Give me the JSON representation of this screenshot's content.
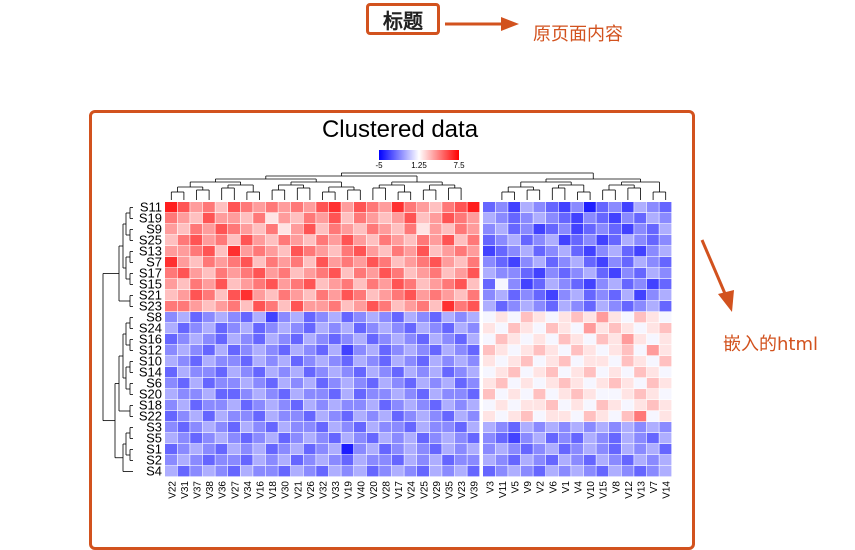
{
  "annotations": {
    "title_tag": "标题",
    "title_note": "原页面内容",
    "embed_note": "嵌入的html"
  },
  "colors": {
    "accent": "#d2521e",
    "low": "#0000ff",
    "mid": "#ffffff",
    "high": "#ff0000"
  },
  "chart_data": {
    "type": "heatmap",
    "title": "Clustered data",
    "legend": {
      "min": -5,
      "mid": 1.25,
      "max": 7.5,
      "labels": [
        "-5",
        "1.25",
        "7.5"
      ]
    },
    "rows": [
      "S11",
      "S19",
      "S9",
      "S25",
      "S13",
      "S7",
      "S17",
      "S15",
      "S21",
      "S23",
      "S8",
      "S24",
      "S16",
      "S12",
      "S10",
      "S14",
      "S6",
      "S20",
      "S18",
      "S22",
      "S3",
      "S5",
      "S1",
      "S2",
      "S4"
    ],
    "columns": [
      "V22",
      "V31",
      "V37",
      "V38",
      "V36",
      "V27",
      "V34",
      "V16",
      "V18",
      "V30",
      "V21",
      "V26",
      "V32",
      "V33",
      "V19",
      "V40",
      "V20",
      "V28",
      "V17",
      "V24",
      "V25",
      "V29",
      "V35",
      "V23",
      "V39",
      "V3",
      "V11",
      "V5",
      "V9",
      "V2",
      "V6",
      "V1",
      "V4",
      "V10",
      "V15",
      "V8",
      "V12",
      "V13",
      "V7",
      "V14"
    ],
    "values": [
      [
        8,
        6,
        4,
        5,
        3,
        6,
        5,
        4,
        5,
        4,
        5,
        4,
        6,
        7,
        4,
        6,
        5,
        4,
        7,
        5,
        4,
        3,
        5,
        6,
        8,
        -3,
        -2,
        -4,
        -1,
        -2,
        -3,
        -4,
        -2,
        -6,
        -3,
        -2,
        -4,
        -1,
        -2,
        -3
      ],
      [
        5,
        4,
        3,
        6,
        4,
        4,
        3,
        5,
        2,
        4,
        3,
        5,
        4,
        6,
        3,
        5,
        4,
        3,
        4,
        6,
        3,
        4,
        6,
        5,
        4,
        -1,
        -2,
        -3,
        -2,
        -1,
        -2,
        -3,
        -4,
        -2,
        -3,
        -4,
        -2,
        -3,
        -1,
        -2
      ],
      [
        4,
        3,
        5,
        4,
        6,
        5,
        4,
        3,
        5,
        2,
        4,
        6,
        3,
        5,
        4,
        3,
        5,
        4,
        3,
        5,
        2,
        4,
        3,
        5,
        4,
        -2,
        -1,
        -3,
        -2,
        -4,
        -3,
        -2,
        -4,
        -3,
        -2,
        -3,
        -4,
        -2,
        -3,
        -1
      ],
      [
        3,
        5,
        6,
        4,
        5,
        3,
        6,
        4,
        3,
        5,
        4,
        3,
        5,
        4,
        6,
        4,
        3,
        5,
        4,
        3,
        5,
        4,
        6,
        3,
        5,
        -3,
        -2,
        -1,
        -3,
        -2,
        -1,
        -4,
        -3,
        -2,
        -4,
        -3,
        -1,
        -2,
        -3,
        -2
      ],
      [
        4,
        4,
        5,
        6,
        3,
        7,
        4,
        5,
        4,
        3,
        6,
        5,
        4,
        3,
        5,
        6,
        4,
        3,
        5,
        4,
        6,
        3,
        4,
        5,
        4,
        -4,
        -3,
        -2,
        -1,
        -3,
        -2,
        -1,
        -3,
        -4,
        -2,
        -1,
        -3,
        -4,
        -2,
        -1
      ],
      [
        7,
        4,
        3,
        5,
        4,
        5,
        6,
        3,
        5,
        4,
        5,
        3,
        6,
        4,
        5,
        4,
        6,
        5,
        3,
        4,
        5,
        6,
        4,
        3,
        5,
        -2,
        -3,
        -4,
        -2,
        -1,
        -3,
        -2,
        -1,
        -3,
        -4,
        -2,
        -3,
        -1,
        -2,
        -3
      ],
      [
        5,
        6,
        4,
        3,
        5,
        4,
        5,
        6,
        4,
        5,
        3,
        4,
        5,
        6,
        3,
        5,
        4,
        6,
        5,
        3,
        4,
        5,
        3,
        4,
        6,
        -1,
        -2,
        -2,
        -3,
        -4,
        -2,
        -3,
        -2,
        -1,
        -3,
        -4,
        -2,
        -3,
        -1,
        -2
      ],
      [
        4,
        3,
        5,
        4,
        6,
        3,
        4,
        5,
        6,
        4,
        5,
        6,
        3,
        4,
        5,
        3,
        5,
        4,
        6,
        5,
        3,
        4,
        5,
        6,
        3,
        -3,
        1,
        -2,
        -4,
        -3,
        -1,
        -2,
        -3,
        -4,
        -2,
        -1,
        -3,
        -2,
        -4,
        -3
      ],
      [
        3,
        4,
        6,
        5,
        3,
        6,
        7,
        4,
        3,
        5,
        4,
        3,
        5,
        4,
        6,
        5,
        3,
        4,
        5,
        6,
        4,
        5,
        4,
        3,
        5,
        -2,
        -1,
        -3,
        -2,
        -3,
        -4,
        -2,
        -1,
        -3,
        -2,
        -3,
        -1,
        -4,
        -2,
        -1
      ],
      [
        5,
        5,
        4,
        3,
        4,
        5,
        3,
        6,
        5,
        3,
        6,
        4,
        4,
        5,
        3,
        4,
        6,
        5,
        3,
        4,
        5,
        3,
        7,
        5,
        6,
        -1,
        -3,
        -2,
        -1,
        -2,
        -3,
        -1,
        -2,
        -3,
        -1,
        -2,
        -3,
        -2,
        -1,
        -3
      ],
      [
        -2,
        -1,
        -3,
        -2,
        -1,
        -2,
        -3,
        -1,
        -4,
        -2,
        -1,
        -3,
        -2,
        -1,
        -3,
        -2,
        -1,
        -2,
        -3,
        -1,
        -2,
        -3,
        -1,
        -2,
        -1,
        1,
        2,
        1,
        3,
        2,
        1,
        2,
        3,
        2,
        4,
        2,
        1,
        3,
        2,
        1
      ],
      [
        -1,
        -3,
        -2,
        -1,
        -3,
        -2,
        -1,
        -3,
        -2,
        -1,
        -2,
        -3,
        -1,
        -2,
        -1,
        -3,
        -2,
        -1,
        -2,
        -3,
        -1,
        -2,
        -3,
        -1,
        -2,
        2,
        1,
        3,
        2,
        1,
        3,
        2,
        1,
        4,
        2,
        3,
        2,
        1,
        2,
        3
      ],
      [
        -3,
        -2,
        -1,
        -2,
        -3,
        -1,
        -2,
        -3,
        -1,
        -2,
        -3,
        -1,
        -2,
        -3,
        -2,
        -1,
        -3,
        -2,
        -1,
        -2,
        -3,
        -1,
        -2,
        -3,
        -1,
        1,
        3,
        2,
        1,
        2,
        1,
        3,
        2,
        1,
        3,
        2,
        4,
        2,
        1,
        2
      ],
      [
        -2,
        -1,
        -2,
        -3,
        -1,
        -3,
        -2,
        -1,
        -2,
        -3,
        -1,
        -2,
        -3,
        -1,
        -4,
        -2,
        -1,
        -3,
        -2,
        -1,
        -2,
        -3,
        -1,
        -2,
        -3,
        3,
        2,
        1,
        2,
        3,
        2,
        1,
        3,
        2,
        1,
        2,
        3,
        1,
        4,
        2
      ],
      [
        -1,
        -2,
        -3,
        -1,
        -2,
        -2,
        -3,
        -1,
        -2,
        -1,
        -3,
        -2,
        -1,
        -2,
        -3,
        -1,
        -2,
        -3,
        -1,
        -2,
        -3,
        -1,
        -2,
        -1,
        -2,
        2,
        1,
        2,
        3,
        1,
        2,
        3,
        1,
        2,
        2,
        1,
        3,
        2,
        1,
        3
      ],
      [
        -3,
        -1,
        -2,
        -2,
        -3,
        -1,
        -2,
        -3,
        -1,
        -2,
        -1,
        -3,
        -2,
        -1,
        -2,
        -3,
        -1,
        -2,
        -3,
        -1,
        -2,
        -1,
        -3,
        -2,
        -1,
        1,
        2,
        3,
        1,
        2,
        3,
        1,
        2,
        3,
        1,
        2,
        1,
        3,
        2,
        1
      ],
      [
        -2,
        -3,
        -1,
        -3,
        -2,
        -2,
        -1,
        -2,
        -3,
        -1,
        -2,
        -1,
        -3,
        -2,
        -1,
        -2,
        -3,
        -1,
        -2,
        -3,
        -1,
        -2,
        -1,
        -3,
        -2,
        2,
        3,
        1,
        2,
        1,
        2,
        3,
        2,
        1,
        2,
        3,
        2,
        1,
        3,
        2
      ],
      [
        -1,
        -2,
        -2,
        -1,
        -3,
        -3,
        -2,
        -1,
        -2,
        -3,
        -1,
        -2,
        -2,
        -3,
        -1,
        -3,
        -2,
        -2,
        -1,
        -2,
        -3,
        -1,
        -2,
        -2,
        -3,
        3,
        1,
        2,
        1,
        3,
        1,
        2,
        3,
        2,
        1,
        1,
        2,
        3,
        2,
        1
      ],
      [
        -2,
        -1,
        -3,
        -2,
        -2,
        -1,
        -3,
        -2,
        -1,
        -2,
        -3,
        -1,
        -2,
        -1,
        -2,
        -2,
        -1,
        -3,
        -2,
        -1,
        -2,
        -3,
        -1,
        -2,
        -1,
        1,
        2,
        1,
        2,
        2,
        3,
        1,
        2,
        1,
        3,
        2,
        1,
        2,
        3,
        2
      ],
      [
        -3,
        -2,
        -1,
        -3,
        -1,
        -2,
        -2,
        -3,
        -1,
        -2,
        -2,
        -3,
        -1,
        -2,
        -3,
        -1,
        -2,
        -1,
        -3,
        -2,
        -1,
        -2,
        -3,
        -1,
        -2,
        2,
        1,
        2,
        3,
        1,
        2,
        2,
        1,
        3,
        2,
        1,
        3,
        5,
        1,
        2
      ],
      [
        -2,
        -3,
        -2,
        -1,
        -2,
        -3,
        -1,
        -2,
        -3,
        -1,
        -2,
        -2,
        -3,
        -1,
        -2,
        -3,
        -1,
        -2,
        -2,
        -3,
        -1,
        -2,
        -2,
        -3,
        -1,
        -1,
        -2,
        -3,
        -1,
        -2,
        -1,
        -2,
        -1,
        -2,
        -1,
        -2,
        -1,
        -2,
        -1,
        -2
      ],
      [
        -1,
        -2,
        -3,
        -2,
        -1,
        -2,
        -3,
        -2,
        -1,
        -3,
        -2,
        -1,
        -2,
        -3,
        -1,
        -2,
        -3,
        -1,
        -2,
        -1,
        -3,
        -2,
        -1,
        -2,
        -3,
        -2,
        -3,
        -4,
        -2,
        -1,
        -3,
        -2,
        -3,
        -1,
        -2,
        -3,
        -1,
        -2,
        -3,
        -1
      ],
      [
        -3,
        -2,
        -1,
        -2,
        -3,
        -1,
        -2,
        -1,
        -3,
        -2,
        -1,
        -3,
        -2,
        -1,
        -5,
        -2,
        -1,
        -3,
        -2,
        -1,
        -2,
        -3,
        -1,
        -2,
        -1,
        -2,
        -1,
        -2,
        -3,
        -2,
        -1,
        -3,
        -2,
        -1,
        -2,
        -3,
        -1,
        -2,
        -1,
        -3
      ],
      [
        -2,
        -1,
        -2,
        -3,
        -2,
        -2,
        -3,
        -1,
        -2,
        -1,
        -3,
        -2,
        -1,
        -2,
        -3,
        -1,
        -2,
        -2,
        -3,
        -1,
        -2,
        -1,
        -3,
        -2,
        -2,
        -1,
        -2,
        -3,
        -1,
        -2,
        -3,
        -1,
        -2,
        -3,
        -1,
        -2,
        -3,
        -1,
        -2,
        -1
      ],
      [
        -1,
        -3,
        -2,
        -1,
        -2,
        -3,
        -1,
        -2,
        -2,
        -3,
        -1,
        -2,
        -3,
        -1,
        -2,
        -1,
        -3,
        -2,
        -1,
        -2,
        -3,
        -1,
        -2,
        -1,
        -3,
        -3,
        -2,
        -1,
        -2,
        -3,
        -1,
        -2,
        -1,
        -2,
        -3,
        -1,
        -2,
        -3,
        -2,
        -1
      ]
    ]
  }
}
